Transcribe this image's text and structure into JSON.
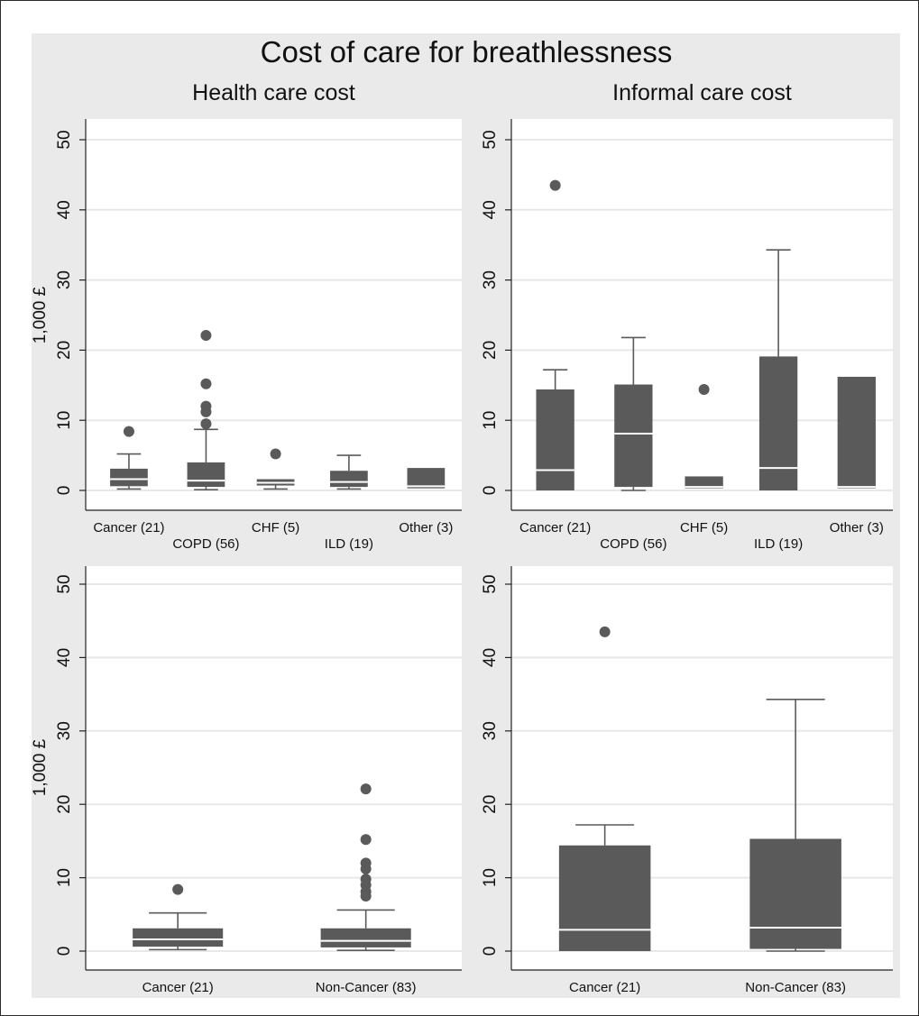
{
  "figure_title": "Cost of care for breathlessness",
  "colors": {
    "box": "#5a5a5a",
    "median": "#ffffff",
    "panel_bg": "#ffffff",
    "outer_bg": "#eaeaea",
    "grid": "#e8e8e8"
  },
  "chart_data": [
    {
      "type": "box",
      "title": "Health care cost",
      "ylabel": "1,000 £",
      "ylim": [
        0,
        50
      ],
      "yticks": [
        0,
        10,
        20,
        30,
        40,
        50
      ],
      "grid": true,
      "categories": [
        "Cancer (21)",
        "COPD (56)",
        "CHF (5)",
        "ILD (19)",
        "Other (3)"
      ],
      "boxes": [
        {
          "min": 0.2,
          "q1": 0.6,
          "median": 1.6,
          "q3": 3.1,
          "max": 5.2,
          "outliers": [
            8.4
          ]
        },
        {
          "min": 0.1,
          "q1": 0.5,
          "median": 1.4,
          "q3": 4.0,
          "max": 8.7,
          "outliers": [
            9.5,
            11.2,
            12.0,
            15.2,
            22.1
          ]
        },
        {
          "min": 0.2,
          "q1": 0.7,
          "median": 1.1,
          "q3": 1.6,
          "max": 1.6,
          "outliers": [
            5.2
          ]
        },
        {
          "min": 0.2,
          "q1": 0.5,
          "median": 1.2,
          "q3": 2.8,
          "max": 5.0,
          "outliers": []
        },
        {
          "min": 0.3,
          "q1": 0.3,
          "median": 0.6,
          "q3": 3.2,
          "max": 3.2,
          "outliers": []
        }
      ]
    },
    {
      "type": "box",
      "title": "Informal care cost",
      "ylabel": "",
      "ylim": [
        0,
        50
      ],
      "yticks": [
        0,
        10,
        20,
        30,
        40,
        50
      ],
      "grid": true,
      "categories": [
        "Cancer (21)",
        "COPD (56)",
        "CHF (5)",
        "ILD (19)",
        "Other (3)"
      ],
      "boxes": [
        {
          "min": 0,
          "q1": 0,
          "median": 2.9,
          "q3": 14.4,
          "max": 17.2,
          "outliers": [
            43.5
          ]
        },
        {
          "min": 0,
          "q1": 0.5,
          "median": 8.1,
          "q3": 15.1,
          "max": 21.8,
          "outliers": []
        },
        {
          "min": 0.3,
          "q1": 0.3,
          "median": 0.5,
          "q3": 2.0,
          "max": 2.0,
          "outliers": [
            14.4
          ]
        },
        {
          "min": 0,
          "q1": 0,
          "median": 3.2,
          "q3": 19.1,
          "max": 34.3,
          "outliers": []
        },
        {
          "min": 0.3,
          "q1": 0.3,
          "median": 0.5,
          "q3": 16.2,
          "max": 16.2,
          "outliers": []
        }
      ]
    },
    {
      "type": "box",
      "title": "",
      "ylabel": "1,000 £",
      "ylim": [
        0,
        50
      ],
      "yticks": [
        0,
        10,
        20,
        30,
        40,
        50
      ],
      "grid": true,
      "categories": [
        "Cancer (21)",
        "Non-Cancer (83)"
      ],
      "boxes": [
        {
          "min": 0.2,
          "q1": 0.6,
          "median": 1.6,
          "q3": 3.1,
          "max": 5.2,
          "outliers": [
            8.4
          ]
        },
        {
          "min": 0.1,
          "q1": 0.5,
          "median": 1.4,
          "q3": 3.1,
          "max": 5.6,
          "outliers": [
            7.5,
            8.1,
            9.0,
            9.8,
            11.2,
            12.0,
            15.2,
            22.1
          ]
        }
      ]
    },
    {
      "type": "box",
      "title": "",
      "ylabel": "",
      "ylim": [
        0,
        50
      ],
      "yticks": [
        0,
        10,
        20,
        30,
        40,
        50
      ],
      "grid": true,
      "categories": [
        "Cancer (21)",
        "Non-Cancer (83)"
      ],
      "boxes": [
        {
          "min": 0,
          "q1": 0,
          "median": 2.9,
          "q3": 14.4,
          "max": 17.2,
          "outliers": [
            43.5
          ]
        },
        {
          "min": 0,
          "q1": 0.3,
          "median": 3.2,
          "q3": 15.3,
          "max": 34.3,
          "outliers": []
        }
      ]
    }
  ]
}
